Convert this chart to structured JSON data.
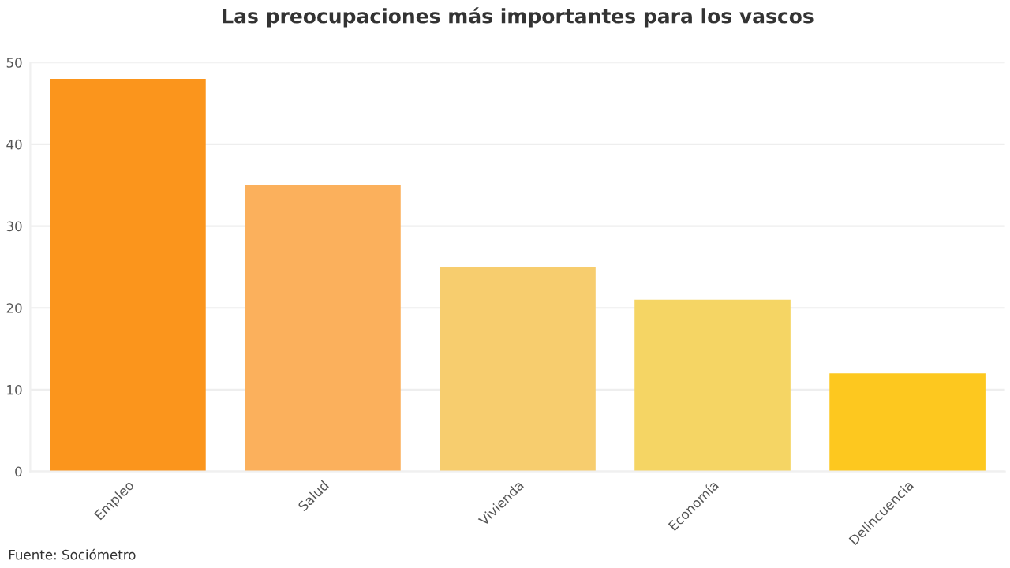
{
  "chart_data": {
    "type": "bar",
    "title": "Las preocupaciones más importantes para los vascos",
    "categories": [
      "Empleo",
      "Salud",
      "Vivienda",
      "Economía",
      "Delincuencia"
    ],
    "values": [
      48,
      35,
      25,
      21,
      12
    ],
    "colors": [
      "#fb951c",
      "#fbb05c",
      "#f7cd6e",
      "#f5d564",
      "#fdc81f"
    ],
    "ylim": [
      0,
      50
    ],
    "yticks": [
      0,
      10,
      20,
      30,
      40,
      50
    ],
    "grid": "y",
    "annotations": [
      "Fuente: Sociómetro"
    ]
  }
}
